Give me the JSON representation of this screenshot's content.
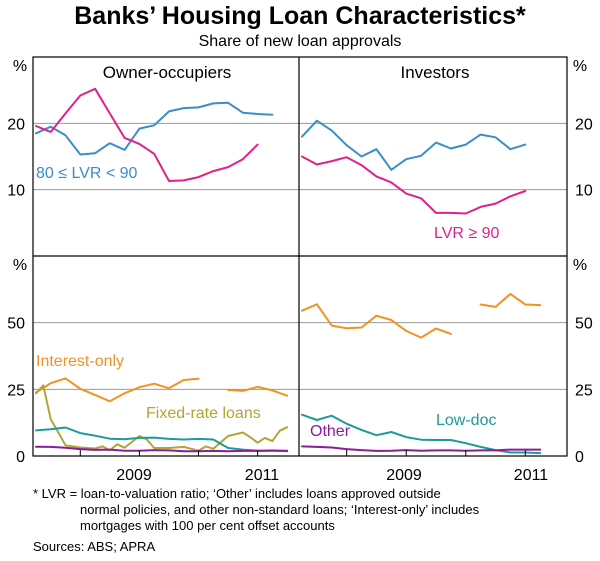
{
  "chart_data": {
    "type": "line",
    "title": "Banks’ Housing Loan Characteristics*",
    "subtitle": "Share of new loan approvals",
    "x_tick_labels": [
      "2009",
      "2011"
    ],
    "footnote": [
      "*     LVR = loan-to-valuation ratio; ‘Other’ includes loans approved outside",
      "normal policies, and other non-standard loans; ‘Interest-only’ includes",
      "mortgages with 100 per cent offset accounts"
    ],
    "sources": "Sources: ABS; APRA",
    "panels": [
      {
        "id": "owner-top",
        "title": "Owner-occupiers",
        "unit": "%",
        "ylim": [
          0,
          30
        ],
        "yticks": [
          "10",
          "20"
        ],
        "ytick_values": [
          10,
          20
        ],
        "series": [
          {
            "name": "80 ≤ LVR < 90",
            "color": "#3a8ec8",
            "x": [
              2007.25,
              2007.5,
              2007.75,
              2008.0,
              2008.25,
              2008.5,
              2008.75,
              2009.0,
              2009.25,
              2009.5,
              2009.75,
              2010.0,
              2010.25,
              2010.5,
              2010.75,
              2011.0,
              2011.25,
              2011.5
            ],
            "y": [
              18.5,
              19.5,
              18.2,
              15.3,
              15.5,
              17.0,
              16.0,
              19.2,
              19.7,
              21.8,
              22.3,
              22.4,
              23.0,
              23.1,
              21.6,
              21.4,
              21.3,
              null
            ]
          },
          {
            "name": "",
            "color": "#e0218a",
            "x": [
              2007.25,
              2007.5,
              2007.75,
              2008.0,
              2008.25,
              2008.5,
              2008.75,
              2009.0,
              2009.25,
              2009.5,
              2009.75,
              2010.0,
              2010.25,
              2010.5,
              2010.75,
              2011.0
            ],
            "y": [
              19.6,
              18.7,
              21.5,
              24.2,
              25.2,
              21.5,
              17.8,
              16.9,
              15.4,
              11.3,
              11.4,
              11.9,
              12.8,
              13.4,
              14.6,
              16.8
            ]
          }
        ]
      },
      {
        "id": "investor-top",
        "title": "Investors",
        "unit": "%",
        "ylim": [
          0,
          30
        ],
        "yticks": [
          "10",
          "20"
        ],
        "ytick_values": [
          10,
          20
        ],
        "series": [
          {
            "name": "",
            "color": "#3a8ec8",
            "x": [
              2007.25,
              2007.5,
              2007.75,
              2008.0,
              2008.25,
              2008.5,
              2008.75,
              2009.0,
              2009.25,
              2009.5,
              2009.75,
              2010.0,
              2010.25,
              2010.5,
              2010.75,
              2011.0,
              2011.25
            ],
            "y": [
              18.0,
              20.4,
              18.9,
              16.7,
              15.0,
              16.1,
              13.0,
              14.6,
              15.1,
              17.1,
              16.2,
              16.8,
              18.3,
              17.9,
              16.1,
              16.8,
              null
            ]
          },
          {
            "name": "LVR ≥ 90",
            "color": "#e0218a",
            "x": [
              2007.25,
              2007.5,
              2007.75,
              2008.0,
              2008.25,
              2008.5,
              2008.75,
              2009.0,
              2009.25,
              2009.5,
              2009.75,
              2010.0,
              2010.25,
              2010.5,
              2010.75,
              2011.0,
              2011.25
            ],
            "y": [
              15.0,
              13.8,
              14.3,
              14.9,
              13.7,
              12.0,
              11.1,
              9.4,
              8.7,
              6.5,
              6.5,
              6.4,
              7.4,
              7.9,
              9.0,
              9.8,
              null
            ]
          }
        ]
      },
      {
        "id": "owner-bottom",
        "title": "",
        "unit": "%",
        "ylim": [
          0,
          75
        ],
        "yticks": [
          "0",
          "25",
          "50"
        ],
        "ytick_values": [
          0,
          25,
          50
        ],
        "series": [
          {
            "name": "Interest-only",
            "color": "#f39123",
            "x": [
              2007.25,
              2007.5,
              2007.75,
              2008.0,
              2008.25,
              2008.5,
              2008.75,
              2009.0,
              2009.25,
              2009.5,
              2009.75,
              2010.0,
              2010.25,
              2010.5,
              2010.75,
              2011.0,
              2011.25,
              2011.5
            ],
            "y": [
              23.8,
              27.3,
              29.1,
              25.2,
              22.9,
              20.5,
              23.5,
              25.8,
              27.1,
              25.4,
              28.5,
              29.0,
              null,
              24.8,
              24.4,
              25.9,
              24.6,
              22.6
            ]
          },
          {
            "name": "Fixed-rate loans",
            "color": "#b3a534",
            "x": [
              2007.25,
              2007.375,
              2007.5,
              2007.625,
              2007.75,
              2008.0,
              2008.25,
              2008.375,
              2008.5,
              2008.625,
              2008.75,
              2008.875,
              2009.0,
              2009.125,
              2009.25,
              2009.5,
              2009.75,
              2010.0,
              2010.125,
              2010.25,
              2010.5,
              2010.75,
              2010.875,
              2011.0,
              2011.125,
              2011.25,
              2011.375,
              2011.5
            ],
            "y": [
              23.5,
              26.5,
              13.8,
              9.0,
              4.0,
              3.2,
              2.8,
              3.6,
              2.1,
              4.4,
              3.1,
              5.3,
              7.5,
              6.2,
              3.0,
              3.0,
              3.4,
              2.0,
              3.6,
              2.7,
              7.5,
              8.8,
              7.1,
              5.0,
              6.8,
              5.6,
              9.5,
              10.8
            ]
          },
          {
            "name": "",
            "color": "#1e9a9a",
            "x": [
              2007.25,
              2007.5,
              2007.75,
              2008.0,
              2008.25,
              2008.5,
              2008.75,
              2009.0,
              2009.25,
              2009.5,
              2009.75,
              2010.0,
              2010.25,
              2010.5,
              2010.75,
              2011.0,
              2011.25,
              2011.5
            ],
            "y": [
              9.6,
              10.0,
              10.7,
              8.6,
              7.6,
              6.5,
              6.3,
              6.8,
              6.9,
              6.4,
              6.2,
              6.4,
              6.2,
              3.0,
              2.4,
              2.0,
              2.1,
              1.8
            ]
          },
          {
            "name": "",
            "color": "#8b1c98",
            "x": [
              2007.25,
              2007.5,
              2007.75,
              2008.0,
              2008.25,
              2008.5,
              2008.75,
              2009.0,
              2009.25,
              2009.5,
              2009.75,
              2010.0,
              2010.25,
              2010.5,
              2010.75,
              2011.0,
              2011.25,
              2011.5
            ],
            "y": [
              3.5,
              3.4,
              3.1,
              2.6,
              2.3,
              2.4,
              2.0,
              2.0,
              2.2,
              2.1,
              1.8,
              1.8,
              1.9,
              1.8,
              1.9,
              1.9,
              2.0,
              2.0
            ]
          }
        ]
      },
      {
        "id": "investor-bottom",
        "title": "",
        "unit": "%",
        "ylim": [
          0,
          75
        ],
        "yticks": [
          "0",
          "25",
          "50"
        ],
        "ytick_values": [
          0,
          25,
          50
        ],
        "series": [
          {
            "name": "",
            "color": "#f39123",
            "x": [
              2007.25,
              2007.5,
              2007.75,
              2008.0,
              2008.25,
              2008.5,
              2008.75,
              2009.0,
              2009.25,
              2009.5,
              2009.75,
              2010.0,
              2010.25,
              2010.5,
              2010.75,
              2011.0,
              2011.25
            ],
            "y": [
              54.5,
              56.9,
              48.9,
              47.9,
              48.2,
              52.6,
              51.0,
              46.9,
              44.4,
              47.8,
              45.8,
              null,
              56.8,
              55.9,
              60.8,
              56.8,
              56.6
            ]
          },
          {
            "name": "Low-doc",
            "color": "#1e9a9a",
            "x": [
              2007.25,
              2007.5,
              2007.75,
              2008.0,
              2008.25,
              2008.5,
              2008.75,
              2009.0,
              2009.25,
              2009.5,
              2009.75,
              2010.0,
              2010.25,
              2010.5,
              2010.75,
              2011.0,
              2011.25
            ],
            "y": [
              15.5,
              13.5,
              15.1,
              12.1,
              9.8,
              7.8,
              9.0,
              7.1,
              6.1,
              6.0,
              6.0,
              4.8,
              3.4,
              2.2,
              1.3,
              1.3,
              1.1
            ]
          },
          {
            "name": "Other",
            "color": "#8b1c98",
            "x": [
              2007.25,
              2007.5,
              2007.75,
              2008.0,
              2008.25,
              2008.5,
              2008.75,
              2009.0,
              2009.25,
              2009.5,
              2009.75,
              2010.0,
              2010.25,
              2010.5,
              2010.75,
              2011.0,
              2011.25
            ],
            "y": [
              3.6,
              3.4,
              3.2,
              2.6,
              2.2,
              1.9,
              2.0,
              2.2,
              2.0,
              2.1,
              2.1,
              2.0,
              2.1,
              2.1,
              2.4,
              2.4,
              2.4
            ]
          }
        ]
      }
    ]
  }
}
